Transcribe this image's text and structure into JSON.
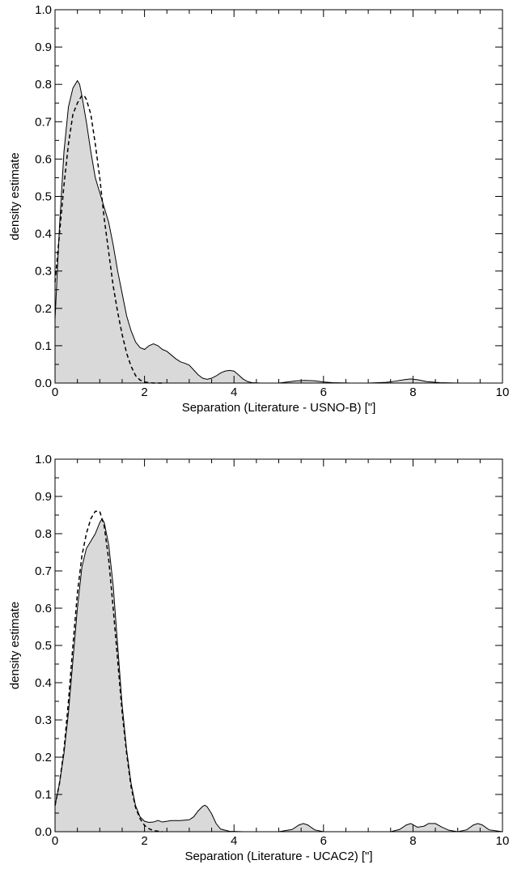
{
  "chart_data": [
    {
      "type": "area",
      "xlabel": "Separation (Literature - USNO-B)  [\"]",
      "ylabel": "density estimate",
      "xlim": [
        0,
        10
      ],
      "ylim": [
        0,
        1.0
      ],
      "xticks": [
        "0",
        "2",
        "4",
        "6",
        "8",
        "10"
      ],
      "yticks": [
        "0.0",
        "0.1",
        "0.2",
        "0.3",
        "0.4",
        "0.5",
        "0.6",
        "0.7",
        "0.8",
        "0.9",
        "1.0"
      ],
      "grid": false,
      "fill_color": "#d9d9d9",
      "series": [
        {
          "style": "solid-filled",
          "x": [
            0,
            0.1,
            0.2,
            0.3,
            0.4,
            0.5,
            0.55,
            0.6,
            0.7,
            0.8,
            0.9,
            1.0,
            1.1,
            1.2,
            1.3,
            1.4,
            1.5,
            1.6,
            1.7,
            1.8,
            1.9,
            2.0,
            2.1,
            2.2,
            2.3,
            2.4,
            2.5,
            2.6,
            2.7,
            2.8,
            2.9,
            3.0,
            3.1,
            3.2,
            3.3,
            3.4,
            3.5,
            3.6,
            3.7,
            3.8,
            3.9,
            4.0,
            4.1,
            4.2,
            4.3,
            4.4,
            4.6,
            5.0,
            5.2,
            5.4,
            5.6,
            5.8,
            6.0,
            6.2,
            6.6,
            7.0,
            7.4,
            7.6,
            7.8,
            7.95,
            8.1,
            8.3,
            8.6,
            9.0,
            10.0
          ],
          "y": [
            0.17,
            0.42,
            0.62,
            0.74,
            0.79,
            0.81,
            0.8,
            0.77,
            0.7,
            0.62,
            0.55,
            0.51,
            0.47,
            0.43,
            0.37,
            0.3,
            0.24,
            0.18,
            0.14,
            0.11,
            0.095,
            0.09,
            0.1,
            0.105,
            0.1,
            0.09,
            0.085,
            0.075,
            0.065,
            0.057,
            0.053,
            0.048,
            0.035,
            0.022,
            0.013,
            0.01,
            0.013,
            0.019,
            0.027,
            0.032,
            0.034,
            0.032,
            0.022,
            0.011,
            0.004,
            0.001,
            0.0,
            0.0,
            0.003,
            0.006,
            0.007,
            0.006,
            0.003,
            0.001,
            0.0,
            0.0,
            0.002,
            0.005,
            0.009,
            0.011,
            0.009,
            0.004,
            0.001,
            0.0,
            0.0
          ]
        },
        {
          "style": "dashed",
          "x": [
            0,
            0.1,
            0.2,
            0.3,
            0.4,
            0.5,
            0.6,
            0.65,
            0.7,
            0.8,
            0.9,
            1.0,
            1.1,
            1.2,
            1.3,
            1.4,
            1.5,
            1.6,
            1.7,
            1.8,
            1.9,
            2.0,
            2.1,
            2.2,
            2.4
          ],
          "y": [
            0.27,
            0.4,
            0.53,
            0.64,
            0.72,
            0.75,
            0.77,
            0.77,
            0.76,
            0.72,
            0.64,
            0.55,
            0.44,
            0.35,
            0.26,
            0.19,
            0.13,
            0.08,
            0.045,
            0.02,
            0.008,
            0.003,
            0.001,
            0.0,
            0.0
          ]
        }
      ]
    },
    {
      "type": "area",
      "xlabel": "Separation (Literature - UCAC2)  [\"]",
      "ylabel": "density estimate",
      "xlim": [
        0,
        10
      ],
      "ylim": [
        0,
        1.0
      ],
      "xticks": [
        "0",
        "2",
        "4",
        "6",
        "8",
        "10"
      ],
      "yticks": [
        "0.0",
        "0.1",
        "0.2",
        "0.3",
        "0.4",
        "0.5",
        "0.6",
        "0.7",
        "0.8",
        "0.9",
        "1.0"
      ],
      "grid": false,
      "fill_color": "#d9d9d9",
      "series": [
        {
          "style": "solid-filled",
          "x": [
            0,
            0.1,
            0.2,
            0.3,
            0.4,
            0.5,
            0.6,
            0.7,
            0.8,
            0.9,
            1.0,
            1.05,
            1.1,
            1.2,
            1.3,
            1.4,
            1.5,
            1.6,
            1.7,
            1.8,
            1.9,
            2.0,
            2.1,
            2.2,
            2.3,
            2.4,
            2.5,
            2.6,
            2.8,
            3.0,
            3.1,
            3.2,
            3.3,
            3.35,
            3.4,
            3.5,
            3.6,
            3.7,
            3.9,
            4.2,
            5.0,
            5.3,
            5.45,
            5.55,
            5.65,
            5.8,
            6.0,
            7.5,
            7.7,
            7.85,
            7.95,
            8.1,
            8.25,
            8.35,
            8.5,
            8.65,
            8.8,
            9.0,
            9.2,
            9.35,
            9.45,
            9.55,
            9.7,
            10.0
          ],
          "y": [
            0.07,
            0.13,
            0.21,
            0.32,
            0.46,
            0.6,
            0.71,
            0.76,
            0.78,
            0.8,
            0.83,
            0.84,
            0.83,
            0.77,
            0.66,
            0.5,
            0.34,
            0.22,
            0.13,
            0.07,
            0.04,
            0.028,
            0.025,
            0.026,
            0.03,
            0.026,
            0.028,
            0.03,
            0.03,
            0.032,
            0.04,
            0.056,
            0.068,
            0.071,
            0.067,
            0.048,
            0.022,
            0.007,
            0.001,
            0.0,
            0.0,
            0.006,
            0.018,
            0.022,
            0.018,
            0.005,
            0.0,
            0.0,
            0.006,
            0.018,
            0.022,
            0.012,
            0.015,
            0.022,
            0.022,
            0.012,
            0.004,
            0.0,
            0.005,
            0.018,
            0.022,
            0.018,
            0.005,
            0.0
          ]
        },
        {
          "style": "dashed",
          "x": [
            0,
            0.1,
            0.2,
            0.3,
            0.4,
            0.5,
            0.6,
            0.7,
            0.8,
            0.9,
            0.95,
            1.0,
            1.1,
            1.2,
            1.3,
            1.4,
            1.5,
            1.6,
            1.7,
            1.8,
            1.9,
            2.0,
            2.1,
            2.2,
            2.4
          ],
          "y": [
            0.07,
            0.13,
            0.22,
            0.35,
            0.5,
            0.64,
            0.74,
            0.8,
            0.84,
            0.86,
            0.86,
            0.86,
            0.82,
            0.73,
            0.6,
            0.46,
            0.32,
            0.21,
            0.12,
            0.065,
            0.035,
            0.017,
            0.008,
            0.003,
            0.0
          ]
        }
      ]
    }
  ]
}
